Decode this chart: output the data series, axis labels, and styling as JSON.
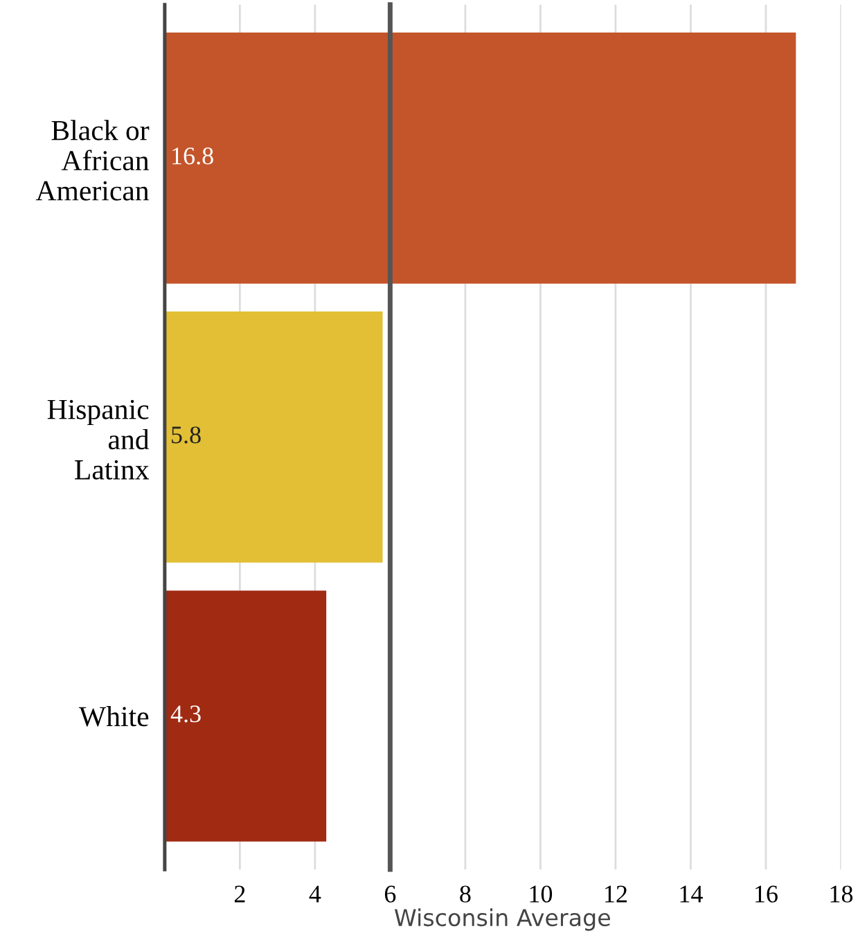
{
  "chart_data": {
    "type": "bar",
    "orientation": "horizontal",
    "categories": [
      "Black or\nAfrican\nAmerican",
      "Hispanic\nand\nLatinx",
      "White"
    ],
    "values": [
      16.8,
      5.8,
      4.3
    ],
    "colors": [
      "#c4552a",
      "#e2bf35",
      "#a02a12"
    ],
    "data_labels": true,
    "xlim": [
      0,
      18
    ],
    "xticks": [
      2,
      4,
      6,
      8,
      10,
      12,
      14,
      16,
      18
    ],
    "grid": "x",
    "legend": false,
    "ref_lines": [
      {
        "axis": "x",
        "value": 6,
        "label": "Wisconsin Average",
        "color": "#555555"
      }
    ]
  }
}
